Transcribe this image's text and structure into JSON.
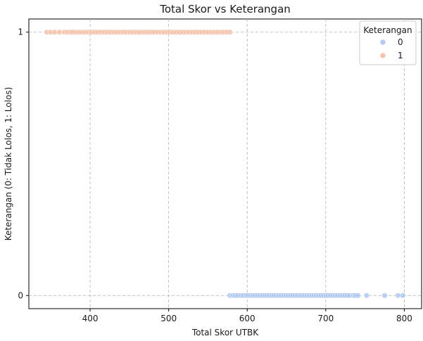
{
  "chart_data": {
    "type": "scatter",
    "title": "Total Skor vs Keterangan",
    "xlabel": "Total Skor UTBK",
    "ylabel": "Keterangan (0: Tidak Lolos, 1: Lolos)",
    "xlim": [
      322,
      822
    ],
    "ylim": [
      -0.05,
      1.05
    ],
    "xticks": [
      400,
      500,
      600,
      700,
      800
    ],
    "yticks": [
      0,
      1
    ],
    "grid": true,
    "legend": {
      "title": "Keterangan",
      "position": "top-right"
    },
    "series": [
      {
        "name": "0",
        "color": "#aec7f0",
        "x": [
          578,
          582,
          585,
          588,
          592,
          595,
          598,
          601,
          604,
          607,
          610,
          613,
          616,
          619,
          622,
          625,
          628,
          631,
          634,
          637,
          640,
          643,
          646,
          649,
          652,
          655,
          658,
          661,
          664,
          667,
          670,
          673,
          676,
          679,
          682,
          685,
          688,
          691,
          694,
          697,
          700,
          703,
          706,
          709,
          712,
          715,
          718,
          721,
          724,
          727,
          730,
          735,
          738,
          741,
          752,
          775,
          792,
          798
        ],
        "y": [
          0,
          0,
          0,
          0,
          0,
          0,
          0,
          0,
          0,
          0,
          0,
          0,
          0,
          0,
          0,
          0,
          0,
          0,
          0,
          0,
          0,
          0,
          0,
          0,
          0,
          0,
          0,
          0,
          0,
          0,
          0,
          0,
          0,
          0,
          0,
          0,
          0,
          0,
          0,
          0,
          0,
          0,
          0,
          0,
          0,
          0,
          0,
          0,
          0,
          0,
          0,
          0,
          0,
          0,
          0,
          0,
          0,
          0
        ]
      },
      {
        "name": "1",
        "color": "#f4bfa6",
        "x": [
          345,
          350,
          355,
          361,
          367,
          371,
          375,
          378,
          382,
          386,
          390,
          394,
          398,
          402,
          406,
          410,
          414,
          418,
          422,
          426,
          430,
          434,
          438,
          442,
          446,
          450,
          454,
          458,
          462,
          466,
          470,
          474,
          478,
          482,
          486,
          490,
          494,
          498,
          502,
          506,
          510,
          514,
          518,
          522,
          526,
          530,
          534,
          538,
          542,
          546,
          550,
          554,
          558,
          562,
          566,
          570,
          574,
          578
        ],
        "y": [
          1,
          1,
          1,
          1,
          1,
          1,
          1,
          1,
          1,
          1,
          1,
          1,
          1,
          1,
          1,
          1,
          1,
          1,
          1,
          1,
          1,
          1,
          1,
          1,
          1,
          1,
          1,
          1,
          1,
          1,
          1,
          1,
          1,
          1,
          1,
          1,
          1,
          1,
          1,
          1,
          1,
          1,
          1,
          1,
          1,
          1,
          1,
          1,
          1,
          1,
          1,
          1,
          1,
          1,
          1,
          1,
          1,
          1
        ]
      }
    ]
  }
}
